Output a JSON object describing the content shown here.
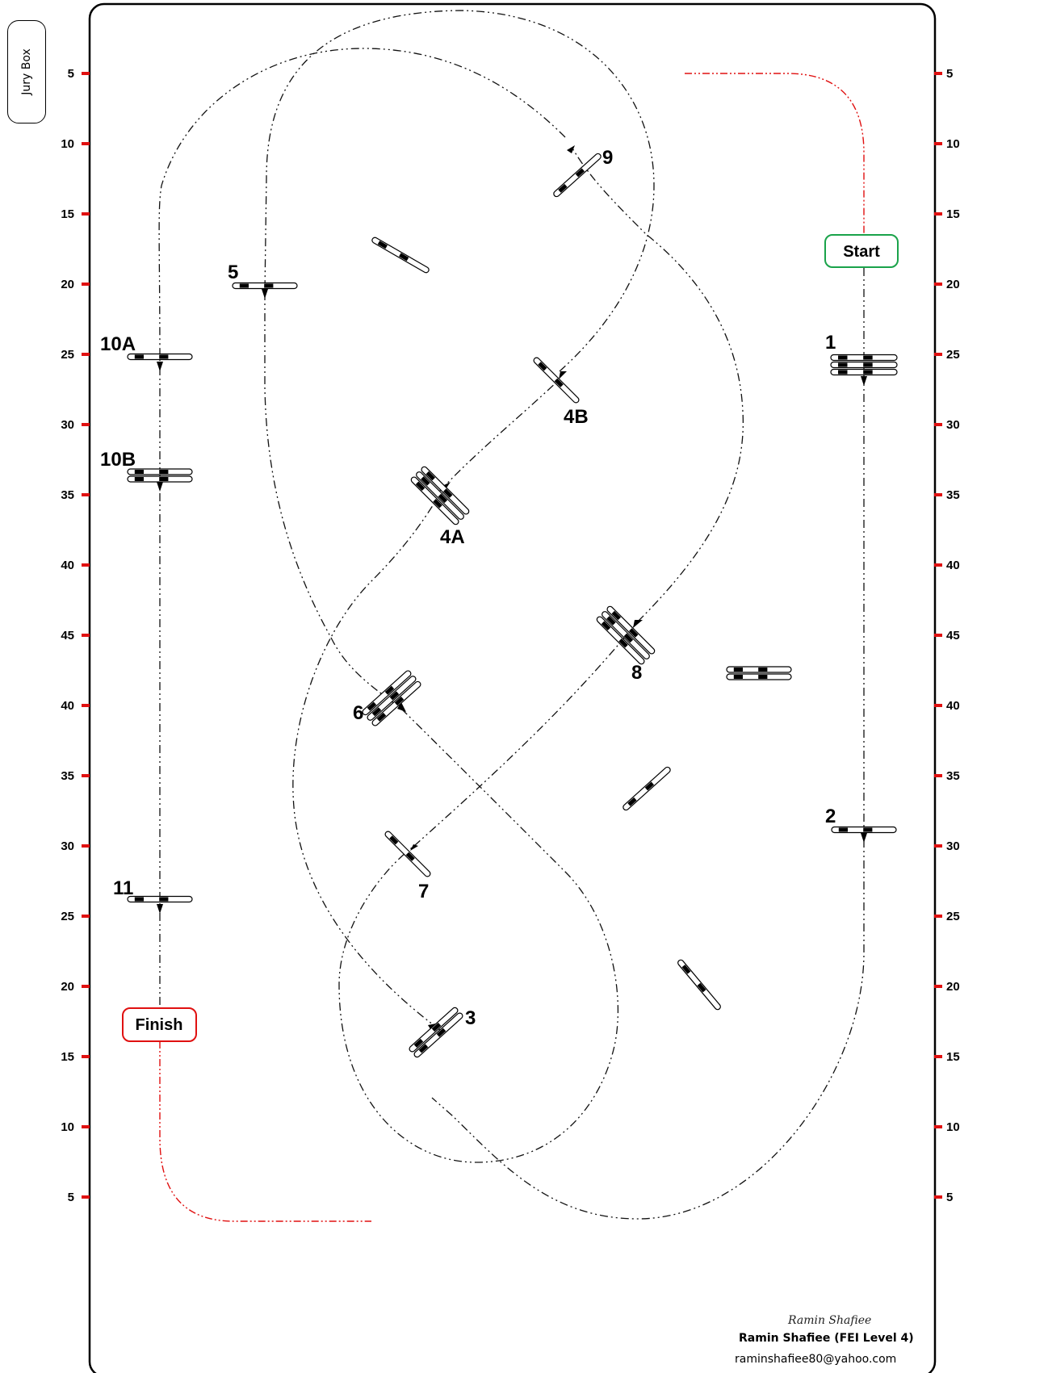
{
  "jury_box": "Jury Box",
  "start_label": "Start",
  "finish_label": "Finish",
  "scale_left": [
    "5",
    "10",
    "15",
    "20",
    "25",
    "30",
    "35",
    "40",
    "45",
    "40",
    "35",
    "30",
    "25",
    "20",
    "15",
    "10",
    "5"
  ],
  "scale_right": [
    "5",
    "10",
    "15",
    "20",
    "25",
    "30",
    "35",
    "40",
    "45",
    "40",
    "35",
    "30",
    "25",
    "20",
    "15",
    "10",
    "5"
  ],
  "obstacle_labels": [
    "1",
    "2",
    "3",
    "4A",
    "4B",
    "5",
    "6",
    "7",
    "8",
    "9",
    "10A",
    "10B",
    "11"
  ],
  "author_script": "Ramin Shafiee",
  "author_name": "Ramin Shafiee (FEI Level 4)",
  "author_email": "raminshafiee80@yahoo.com",
  "colors": {
    "start": "#1aa34a",
    "finish": "#e01010",
    "route": "#111111",
    "red_route": "#e01010",
    "tick": "#e01010"
  }
}
